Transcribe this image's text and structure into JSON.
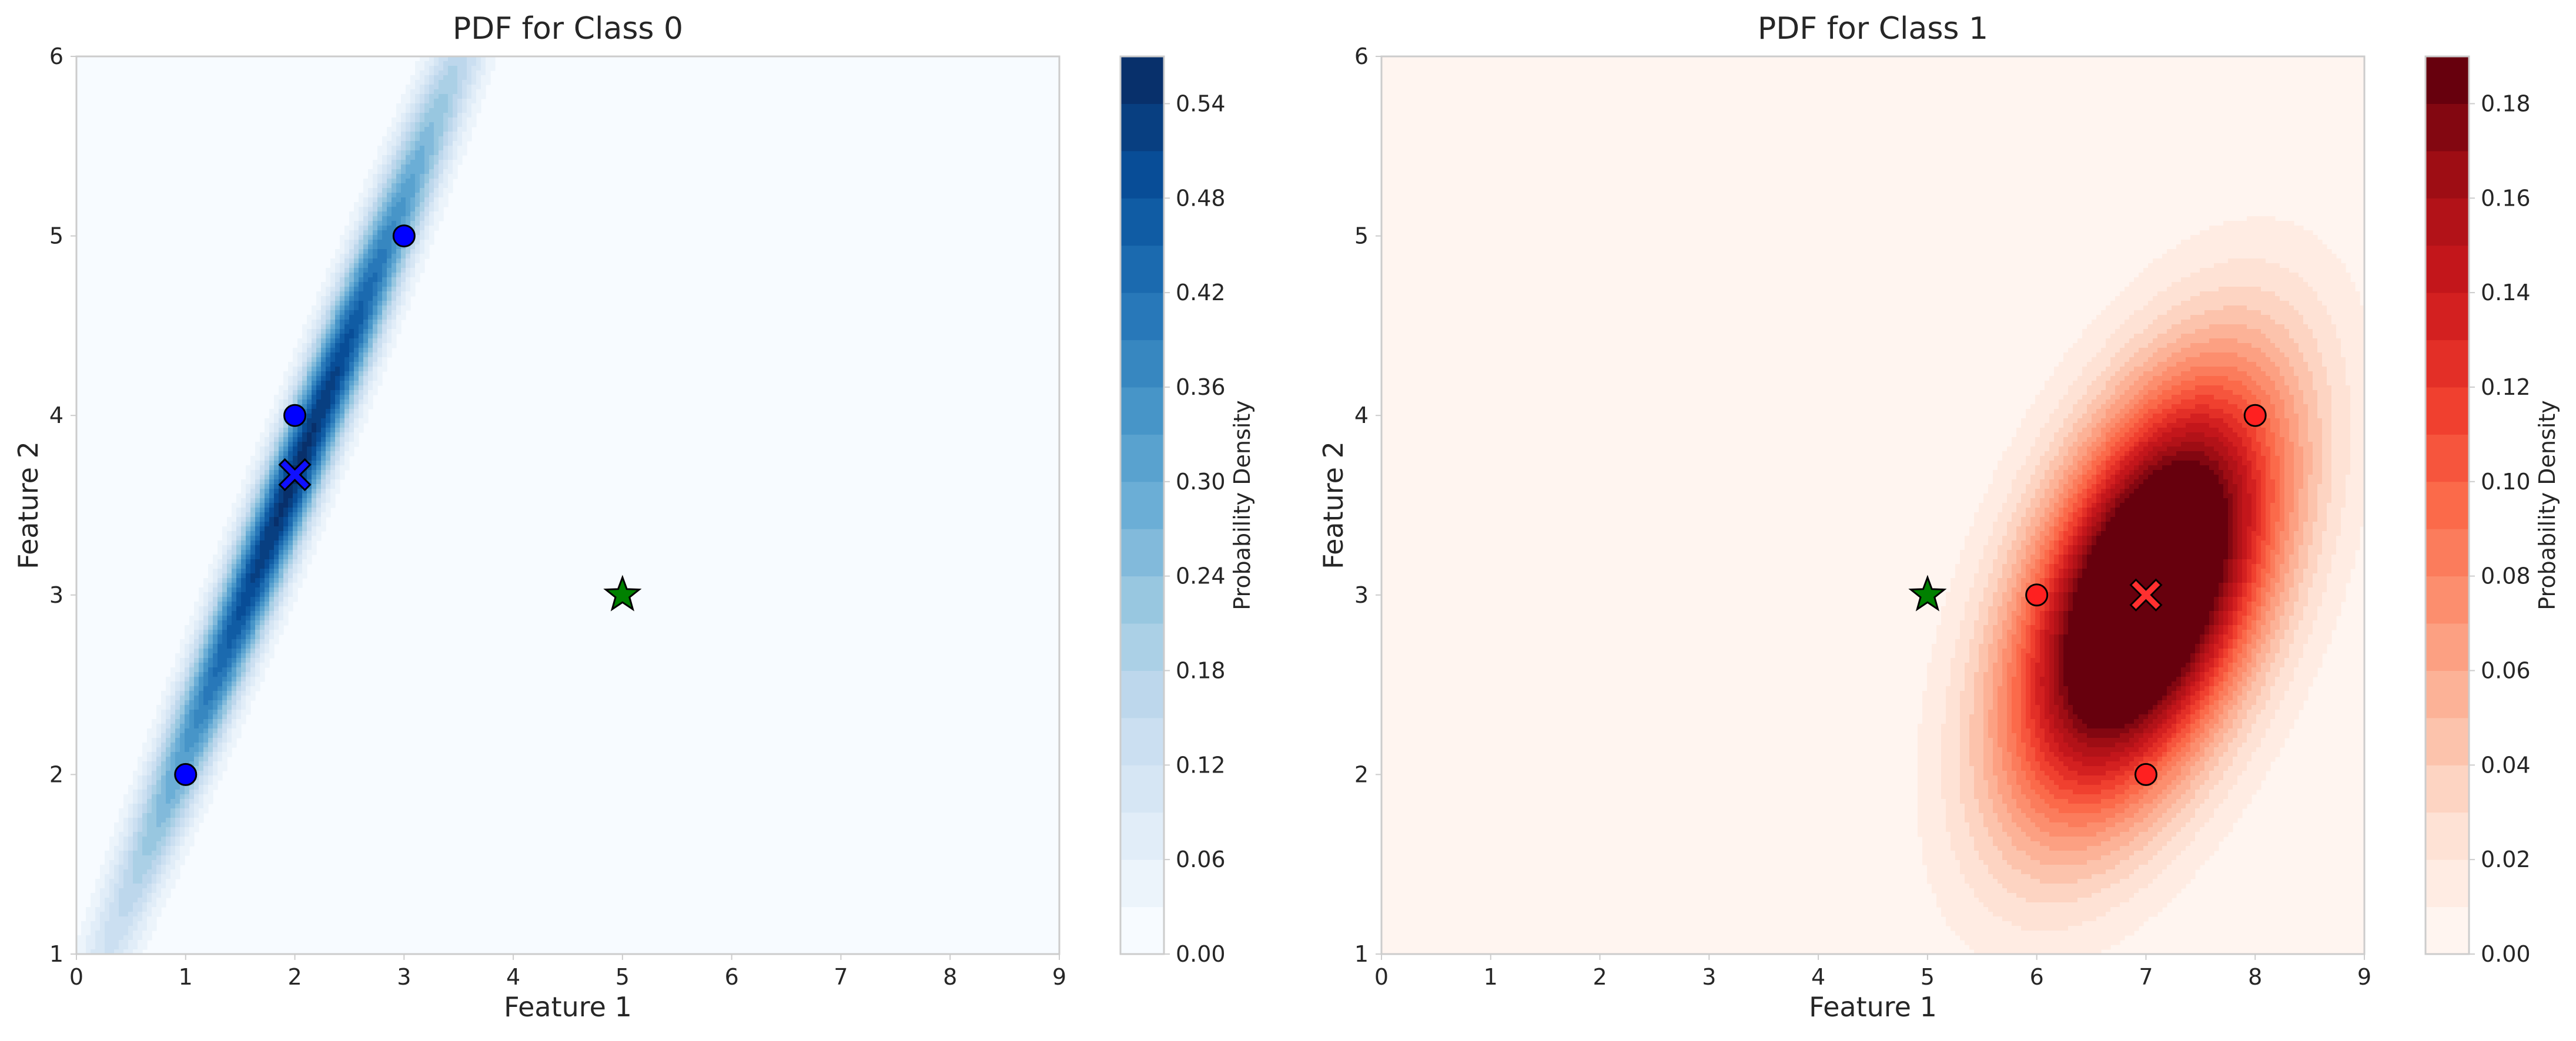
{
  "figure": {
    "colors": {
      "class0_map": [
        "#f7fbff",
        "#deebf7",
        "#c6dbef",
        "#9ecae1",
        "#6baed6",
        "#4292c6",
        "#2171b5",
        "#08519c",
        "#08306b"
      ],
      "class1_map": [
        "#fff5f0",
        "#fee0d2",
        "#fcbba1",
        "#fc9272",
        "#fb6a4a",
        "#ef3b2c",
        "#cb181d",
        "#a50f15",
        "#67000d"
      ],
      "class0_point": "#0000ff",
      "class1_point": "#ff2020",
      "query_point": "#008000"
    }
  },
  "chart_data": [
    {
      "type": "contour",
      "title": "PDF for Class 0",
      "xlabel": "Feature 1",
      "ylabel": "Feature 2",
      "xlim": [
        0,
        9
      ],
      "ylim": [
        1,
        6
      ],
      "xticks": [
        "0",
        "1",
        "2",
        "3",
        "4",
        "5",
        "6",
        "7",
        "8",
        "9"
      ],
      "yticks": [
        "1",
        "2",
        "3",
        "4",
        "5",
        "6"
      ],
      "grid": false,
      "colormap": "Blues",
      "gaussian": {
        "mean": [
          2.0,
          3.6667
        ],
        "cov": [
          [
            1.0,
            1.5
          ],
          [
            1.5,
            2.3333
          ]
        ]
      },
      "contour_levels": [
        0.0,
        0.03,
        0.06,
        0.09,
        0.12,
        0.15,
        0.18,
        0.21,
        0.24,
        0.27,
        0.3,
        0.33,
        0.36,
        0.39,
        0.42,
        0.45,
        0.48,
        0.51,
        0.54,
        0.57
      ],
      "colorbar": {
        "label": "Probability Density",
        "range": [
          0.0,
          0.57
        ],
        "ticks": [
          "0.00",
          "0.06",
          "0.12",
          "0.18",
          "0.24",
          "0.30",
          "0.36",
          "0.42",
          "0.48",
          "0.54"
        ]
      },
      "points": [
        {
          "x": 1,
          "y": 2
        },
        {
          "x": 2,
          "y": 4
        },
        {
          "x": 3,
          "y": 5
        }
      ],
      "mean_marker": {
        "x": 2.0,
        "y": 3.67
      },
      "query_point": {
        "x": 5,
        "y": 3
      }
    },
    {
      "type": "contour",
      "title": "PDF for Class 1",
      "xlabel": "Feature 1",
      "ylabel": "Feature 2",
      "xlim": [
        0,
        9
      ],
      "ylim": [
        1,
        6
      ],
      "xticks": [
        "0",
        "1",
        "2",
        "3",
        "4",
        "5",
        "6",
        "7",
        "8",
        "9"
      ],
      "yticks": [
        "1",
        "2",
        "3",
        "4",
        "5",
        "6"
      ],
      "grid": false,
      "colormap": "Reds",
      "gaussian": {
        "mean": [
          7.0,
          3.0
        ],
        "cov": [
          [
            0.6667,
            0.3333
          ],
          [
            0.3333,
            0.6667
          ]
        ]
      },
      "contour_levels": [
        0.0,
        0.01,
        0.02,
        0.03,
        0.04,
        0.05,
        0.06,
        0.07,
        0.08,
        0.09,
        0.1,
        0.11,
        0.12,
        0.13,
        0.14,
        0.15,
        0.16,
        0.17,
        0.18,
        0.19
      ],
      "colorbar": {
        "label": "Probability Density",
        "range": [
          0.0,
          0.19
        ],
        "ticks": [
          "0.00",
          "0.02",
          "0.04",
          "0.06",
          "0.08",
          "0.10",
          "0.12",
          "0.14",
          "0.16",
          "0.18"
        ]
      },
      "points": [
        {
          "x": 6,
          "y": 3
        },
        {
          "x": 7,
          "y": 2
        },
        {
          "x": 8,
          "y": 4
        }
      ],
      "mean_marker": {
        "x": 7.0,
        "y": 3.0
      },
      "query_point": {
        "x": 5,
        "y": 3
      }
    }
  ]
}
